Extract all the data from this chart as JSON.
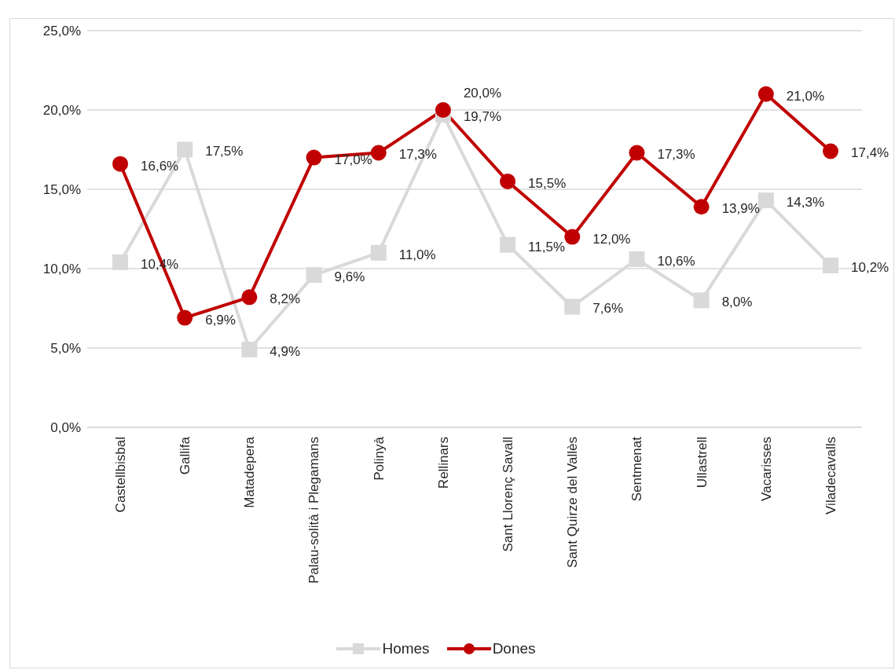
{
  "chart_data": {
    "type": "line",
    "categories": [
      "Castellbisbal",
      "Gallifa",
      "Matadepera",
      "Palau-solità i Plegamans",
      "Polinyà",
      "Rellinars",
      "Sant Llorenç Savall",
      "Sant Quirze del Vallès",
      "Sentmenat",
      "Ullastrell",
      "Vacarisses",
      "Viladecavalls"
    ],
    "series": [
      {
        "name": "Homes",
        "color": "#d9d9d9",
        "marker": "square",
        "values": [
          10.4,
          17.5,
          4.9,
          9.6,
          11.0,
          19.7,
          11.5,
          7.6,
          10.6,
          8.0,
          14.3,
          10.2
        ],
        "value_labels": [
          "10,4%",
          "17,5%",
          "4,9%",
          "9,6%",
          "11,0%",
          "19,7%",
          "11,5%",
          "7,6%",
          "10,6%",
          "8,0%",
          "14,3%",
          "10,2%"
        ]
      },
      {
        "name": "Dones",
        "color": "#c00000",
        "marker": "circle",
        "values": [
          16.6,
          6.9,
          8.2,
          17.0,
          17.3,
          20.0,
          15.5,
          12.0,
          17.3,
          13.9,
          21.0,
          17.4
        ],
        "value_labels": [
          "16,6%",
          "6,9%",
          "8,2%",
          "17,0%",
          "17,3%",
          "20,0%",
          "15,5%",
          "12,0%",
          "17,3%",
          "13,9%",
          "21,0%",
          "17,4%"
        ]
      }
    ],
    "ylim": [
      0,
      25
    ],
    "yticks": [
      {
        "value": 0,
        "label": "0,0%"
      },
      {
        "value": 5,
        "label": "5,0%"
      },
      {
        "value": 10,
        "label": "10,0%"
      },
      {
        "value": 15,
        "label": "15,0%"
      },
      {
        "value": 20,
        "label": "20,0%"
      },
      {
        "value": 25,
        "label": "25,0%"
      }
    ],
    "grid": "y",
    "legend": "bottom",
    "line_style": "solid"
  }
}
